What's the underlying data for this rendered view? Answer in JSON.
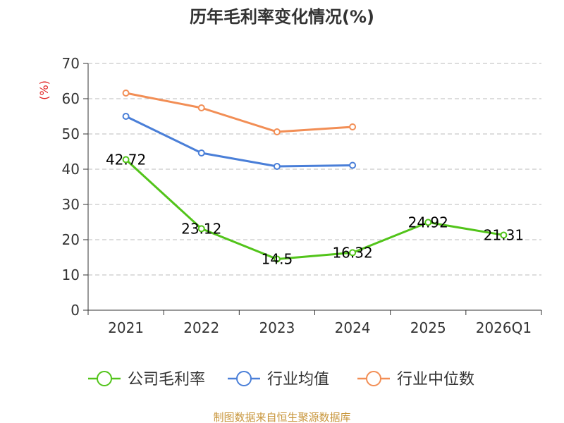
{
  "chart_data": {
    "type": "line",
    "title": "历年毛利率变化情况(%)",
    "ylabel": "(%)",
    "xlabel": "",
    "categories": [
      "2021",
      "2022",
      "2023",
      "2024",
      "2025",
      "2026Q1"
    ],
    "ylim": [
      0,
      70
    ],
    "yticks": [
      0,
      10,
      20,
      30,
      40,
      50,
      60,
      70
    ],
    "grid": true,
    "legend_position": "bottom",
    "series": [
      {
        "name": "公司毛利率",
        "color": "#52c41a",
        "values": [
          42.72,
          23.12,
          14.5,
          16.32,
          24.92,
          21.31
        ],
        "labels": [
          "42.72",
          "23.12",
          "14.5",
          "16.32",
          "24.92",
          "21.31"
        ]
      },
      {
        "name": "行业均值",
        "color": "#4a7fd8",
        "values": [
          55.0,
          44.6,
          40.8,
          41.1,
          null,
          null
        ]
      },
      {
        "name": "行业中位数",
        "color": "#f28e55",
        "values": [
          61.6,
          57.4,
          50.6,
          52.0,
          null,
          null
        ]
      }
    ],
    "source": "制图数据来自恒生聚源数据库",
    "unit_color": "#e02020",
    "source_color": "#c8963c"
  }
}
